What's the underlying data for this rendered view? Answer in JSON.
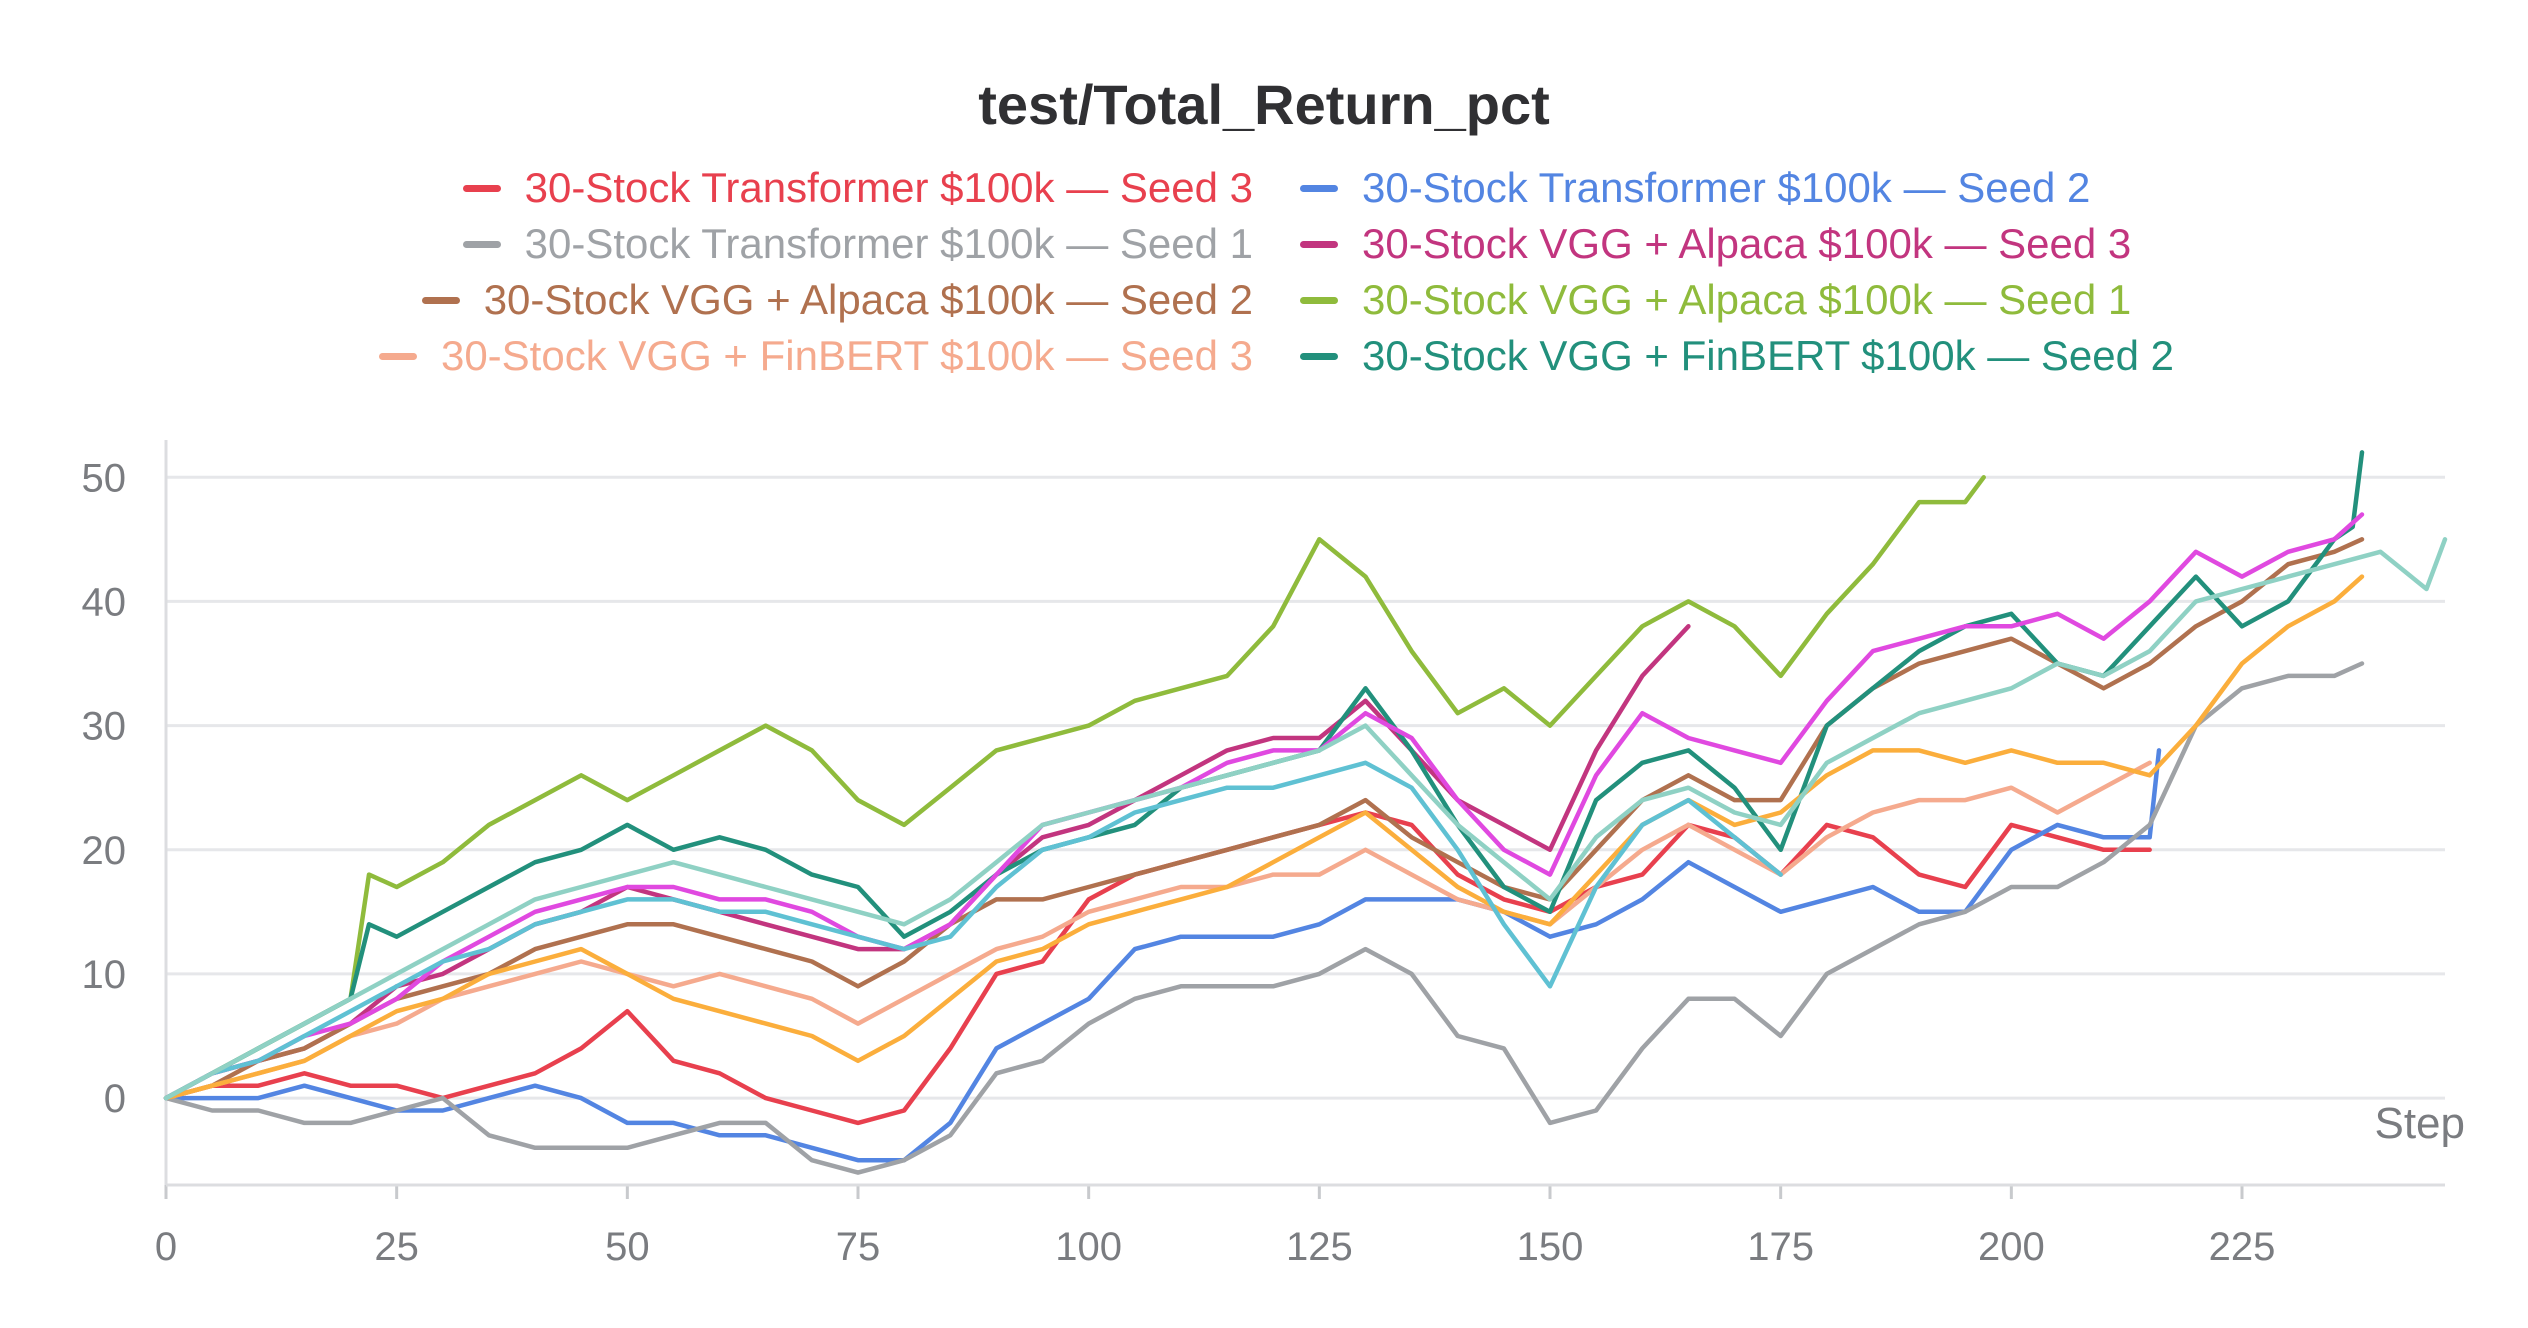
{
  "chart_data": {
    "type": "line",
    "title": "test/Total_Return_pct",
    "xlabel": "Step",
    "ylabel": "",
    "xlim": [
      0,
      247
    ],
    "ylim": [
      -7,
      53
    ],
    "x_ticks": [
      0,
      25,
      50,
      75,
      100,
      125,
      150,
      175,
      200,
      225
    ],
    "y_ticks": [
      0,
      10,
      20,
      30,
      40,
      50
    ],
    "grid": true,
    "legend_position": "top-center",
    "series": [
      {
        "name": "30-Stock Transformer $100k — Seed 3",
        "color": "#e8404e",
        "x": [
          0,
          5,
          10,
          15,
          20,
          25,
          30,
          35,
          40,
          45,
          50,
          55,
          60,
          65,
          70,
          75,
          80,
          85,
          90,
          95,
          100,
          105,
          110,
          115,
          120,
          125,
          130,
          135,
          140,
          145,
          150,
          155,
          160,
          165,
          170,
          175,
          180,
          185,
          190,
          195,
          200,
          205,
          210,
          215
        ],
        "y": [
          0,
          1,
          1,
          2,
          1,
          1,
          0,
          1,
          2,
          4,
          7,
          3,
          2,
          0,
          -1,
          -2,
          -1,
          4,
          10,
          11,
          16,
          18,
          19,
          20,
          21,
          22,
          23,
          22,
          18,
          16,
          15,
          17,
          18,
          22,
          21,
          18,
          22,
          21,
          18,
          17,
          22,
          21,
          20,
          20
        ]
      },
      {
        "name": "30-Stock Transformer $100k — Seed 2",
        "color": "#5385e2",
        "x": [
          0,
          5,
          10,
          15,
          20,
          25,
          30,
          35,
          40,
          45,
          50,
          55,
          60,
          65,
          70,
          75,
          80,
          85,
          90,
          95,
          100,
          105,
          110,
          115,
          120,
          125,
          130,
          135,
          140,
          145,
          150,
          155,
          160,
          165,
          170,
          175,
          180,
          185,
          190,
          195,
          200,
          205,
          210,
          215,
          216
        ],
        "y": [
          0,
          0,
          0,
          1,
          0,
          -1,
          -1,
          0,
          1,
          0,
          -2,
          -2,
          -3,
          -3,
          -4,
          -5,
          -5,
          -2,
          4,
          6,
          8,
          12,
          13,
          13,
          13,
          14,
          16,
          16,
          16,
          15,
          13,
          14,
          16,
          19,
          17,
          15,
          16,
          17,
          15,
          15,
          20,
          22,
          21,
          21,
          28
        ]
      },
      {
        "name": "30-Stock Transformer $100k — Seed 1",
        "color": "#9fa2a6",
        "x": [
          0,
          5,
          10,
          15,
          20,
          25,
          30,
          35,
          40,
          45,
          50,
          55,
          60,
          65,
          70,
          75,
          80,
          85,
          90,
          95,
          100,
          105,
          110,
          115,
          120,
          125,
          130,
          135,
          140,
          145,
          150,
          155,
          160,
          165,
          170,
          175,
          180,
          185,
          190,
          195,
          200,
          205,
          210,
          215,
          220,
          225,
          230,
          235,
          238
        ],
        "y": [
          0,
          -1,
          -1,
          -2,
          -2,
          -1,
          0,
          -3,
          -4,
          -4,
          -4,
          -3,
          -2,
          -2,
          -5,
          -6,
          -5,
          -3,
          2,
          3,
          6,
          8,
          9,
          9,
          9,
          10,
          12,
          10,
          5,
          4,
          -2,
          -1,
          4,
          8,
          8,
          5,
          10,
          12,
          14,
          15,
          17,
          17,
          19,
          22,
          30,
          33,
          34,
          34,
          35
        ]
      },
      {
        "name": "30-Stock VGG + Alpaca $100k — Seed 3",
        "color": "#c2357f",
        "x": [
          0,
          5,
          10,
          15,
          20,
          25,
          30,
          35,
          40,
          45,
          50,
          55,
          60,
          65,
          70,
          75,
          80,
          85,
          90,
          95,
          100,
          105,
          110,
          115,
          120,
          125,
          130,
          135,
          140,
          145,
          150,
          155,
          160,
          165
        ],
        "y": [
          0,
          2,
          3,
          4,
          6,
          9,
          10,
          12,
          14,
          15,
          17,
          16,
          15,
          14,
          13,
          12,
          12,
          14,
          18,
          21,
          22,
          24,
          26,
          28,
          29,
          29,
          32,
          28,
          24,
          22,
          20,
          28,
          34,
          38
        ]
      },
      {
        "name": "30-Stock VGG + Alpaca $100k — Seed 2",
        "color": "#b0714f",
        "x": [
          0,
          5,
          10,
          15,
          20,
          25,
          30,
          35,
          40,
          45,
          50,
          55,
          60,
          65,
          70,
          75,
          80,
          85,
          90,
          95,
          100,
          105,
          110,
          115,
          120,
          125,
          130,
          135,
          140,
          145,
          150,
          155,
          160,
          165,
          170,
          175,
          180,
          185,
          190,
          195,
          200,
          205,
          210,
          215,
          220,
          225,
          230,
          235,
          238
        ],
        "y": [
          0,
          1,
          3,
          4,
          6,
          8,
          9,
          10,
          12,
          13,
          14,
          14,
          13,
          12,
          11,
          9,
          11,
          14,
          16,
          16,
          17,
          18,
          19,
          20,
          21,
          22,
          24,
          21,
          19,
          17,
          16,
          20,
          24,
          26,
          24,
          24,
          30,
          33,
          35,
          36,
          37,
          35,
          33,
          35,
          38,
          40,
          43,
          44,
          45
        ]
      },
      {
        "name": "30-Stock VGG + Alpaca $100k — Seed 1",
        "color": "#8fbb3c",
        "x": [
          0,
          5,
          10,
          15,
          20,
          22,
          25,
          30,
          35,
          40,
          45,
          50,
          55,
          60,
          65,
          70,
          75,
          80,
          85,
          90,
          95,
          100,
          105,
          110,
          115,
          120,
          125,
          130,
          135,
          140,
          145,
          150,
          155,
          160,
          165,
          170,
          175,
          180,
          185,
          190,
          195,
          197
        ],
        "y": [
          0,
          2,
          4,
          6,
          8,
          18,
          17,
          19,
          22,
          24,
          26,
          24,
          26,
          28,
          30,
          28,
          24,
          22,
          25,
          28,
          29,
          30,
          32,
          33,
          34,
          38,
          45,
          42,
          36,
          31,
          33,
          30,
          34,
          38,
          40,
          38,
          34,
          39,
          43,
          48,
          48,
          50
        ]
      },
      {
        "name": "30-Stock VGG + FinBERT $100k — Seed 3",
        "color": "#f5aa8e",
        "x": [
          0,
          5,
          10,
          15,
          20,
          25,
          30,
          35,
          40,
          45,
          50,
          55,
          60,
          65,
          70,
          75,
          80,
          85,
          90,
          95,
          100,
          105,
          110,
          115,
          120,
          125,
          130,
          135,
          140,
          145,
          150,
          155,
          160,
          165,
          170,
          175,
          180,
          185,
          190,
          195,
          200,
          205,
          210,
          215
        ],
        "y": [
          0,
          1,
          2,
          3,
          5,
          6,
          8,
          9,
          10,
          11,
          10,
          9,
          10,
          9,
          8,
          6,
          8,
          10,
          12,
          13,
          15,
          16,
          17,
          17,
          18,
          18,
          20,
          18,
          16,
          15,
          14,
          17,
          20,
          22,
          20,
          18,
          21,
          23,
          24,
          24,
          25,
          23,
          25,
          27
        ]
      },
      {
        "name": "30-Stock VGG + FinBERT $100k — Seed 2",
        "color": "#22907c",
        "x": [
          0,
          5,
          10,
          15,
          20,
          22,
          25,
          30,
          35,
          40,
          45,
          50,
          55,
          60,
          65,
          70,
          75,
          80,
          85,
          90,
          95,
          100,
          105,
          110,
          115,
          120,
          125,
          130,
          135,
          140,
          145,
          150,
          155,
          160,
          165,
          170,
          175,
          180,
          185,
          190,
          195,
          200,
          205,
          210,
          215,
          220,
          225,
          230,
          235,
          237,
          238
        ],
        "y": [
          0,
          2,
          4,
          6,
          8,
          14,
          13,
          15,
          17,
          19,
          20,
          22,
          20,
          21,
          20,
          18,
          17,
          13,
          15,
          18,
          20,
          21,
          22,
          25,
          26,
          27,
          28,
          33,
          28,
          22,
          17,
          15,
          24,
          27,
          28,
          25,
          20,
          30,
          33,
          36,
          38,
          39,
          35,
          34,
          38,
          42,
          38,
          40,
          45,
          46,
          52
        ]
      },
      {
        "name": "",
        "color": "#e049e0",
        "x": [
          0,
          5,
          10,
          15,
          20,
          25,
          30,
          35,
          40,
          45,
          50,
          55,
          60,
          65,
          70,
          75,
          80,
          85,
          90,
          95,
          100,
          105,
          110,
          115,
          120,
          125,
          130,
          135,
          140,
          145,
          150,
          155,
          160,
          165,
          170,
          175,
          180,
          185,
          190,
          195,
          200,
          205,
          210,
          215,
          220,
          225,
          230,
          235,
          238
        ],
        "y": [
          0,
          2,
          3,
          5,
          6,
          8,
          11,
          13,
          15,
          16,
          17,
          17,
          16,
          16,
          15,
          13,
          12,
          14,
          18,
          22,
          23,
          24,
          25,
          27,
          28,
          28,
          31,
          29,
          24,
          20,
          18,
          26,
          31,
          29,
          28,
          27,
          32,
          36,
          37,
          38,
          38,
          39,
          37,
          40,
          44,
          42,
          44,
          45,
          47
        ]
      },
      {
        "name": "",
        "color": "#fbae3c",
        "x": [
          0,
          5,
          10,
          15,
          20,
          25,
          30,
          35,
          40,
          45,
          50,
          55,
          60,
          65,
          70,
          75,
          80,
          85,
          90,
          95,
          100,
          105,
          110,
          115,
          120,
          125,
          130,
          135,
          140,
          145,
          150,
          155,
          160,
          165,
          170,
          175,
          180,
          185,
          190,
          195,
          200,
          205,
          210,
          215,
          220,
          225,
          230,
          235,
          238
        ],
        "y": [
          0,
          1,
          2,
          3,
          5,
          7,
          8,
          10,
          11,
          12,
          10,
          8,
          7,
          6,
          5,
          3,
          5,
          8,
          11,
          12,
          14,
          15,
          16,
          17,
          19,
          21,
          23,
          20,
          17,
          15,
          14,
          18,
          22,
          24,
          22,
          23,
          26,
          28,
          28,
          27,
          28,
          27,
          27,
          26,
          30,
          35,
          38,
          40,
          42
        ]
      },
      {
        "name": "",
        "color": "#5fc1d3",
        "x": [
          0,
          5,
          10,
          15,
          20,
          25,
          30,
          35,
          40,
          45,
          50,
          55,
          60,
          65,
          70,
          75,
          80,
          85,
          90,
          95,
          100,
          105,
          110,
          115,
          120,
          125,
          130,
          135,
          140,
          145,
          150,
          155,
          160,
          165,
          170,
          175
        ],
        "y": [
          0,
          2,
          3,
          5,
          7,
          9,
          11,
          12,
          14,
          15,
          16,
          16,
          15,
          15,
          14,
          13,
          12,
          13,
          17,
          20,
          21,
          23,
          24,
          25,
          25,
          26,
          27,
          25,
          20,
          14,
          9,
          17,
          22,
          24,
          21,
          18
        ]
      },
      {
        "name": "",
        "color": "#8fd1c4",
        "x": [
          0,
          5,
          10,
          15,
          20,
          25,
          30,
          35,
          40,
          45,
          50,
          55,
          60,
          65,
          70,
          75,
          80,
          85,
          90,
          95,
          100,
          105,
          110,
          115,
          120,
          125,
          130,
          135,
          140,
          145,
          150,
          155,
          160,
          165,
          170,
          175,
          180,
          185,
          190,
          195,
          200,
          205,
          210,
          215,
          220,
          225,
          230,
          235,
          240,
          245,
          247
        ],
        "y": [
          0,
          2,
          4,
          6,
          8,
          10,
          12,
          14,
          16,
          17,
          18,
          19,
          18,
          17,
          16,
          15,
          14,
          16,
          19,
          22,
          23,
          24,
          25,
          26,
          27,
          28,
          30,
          26,
          22,
          19,
          16,
          21,
          24,
          25,
          23,
          22,
          27,
          29,
          31,
          32,
          33,
          35,
          34,
          36,
          40,
          41,
          42,
          43,
          44,
          41,
          45
        ]
      }
    ]
  }
}
